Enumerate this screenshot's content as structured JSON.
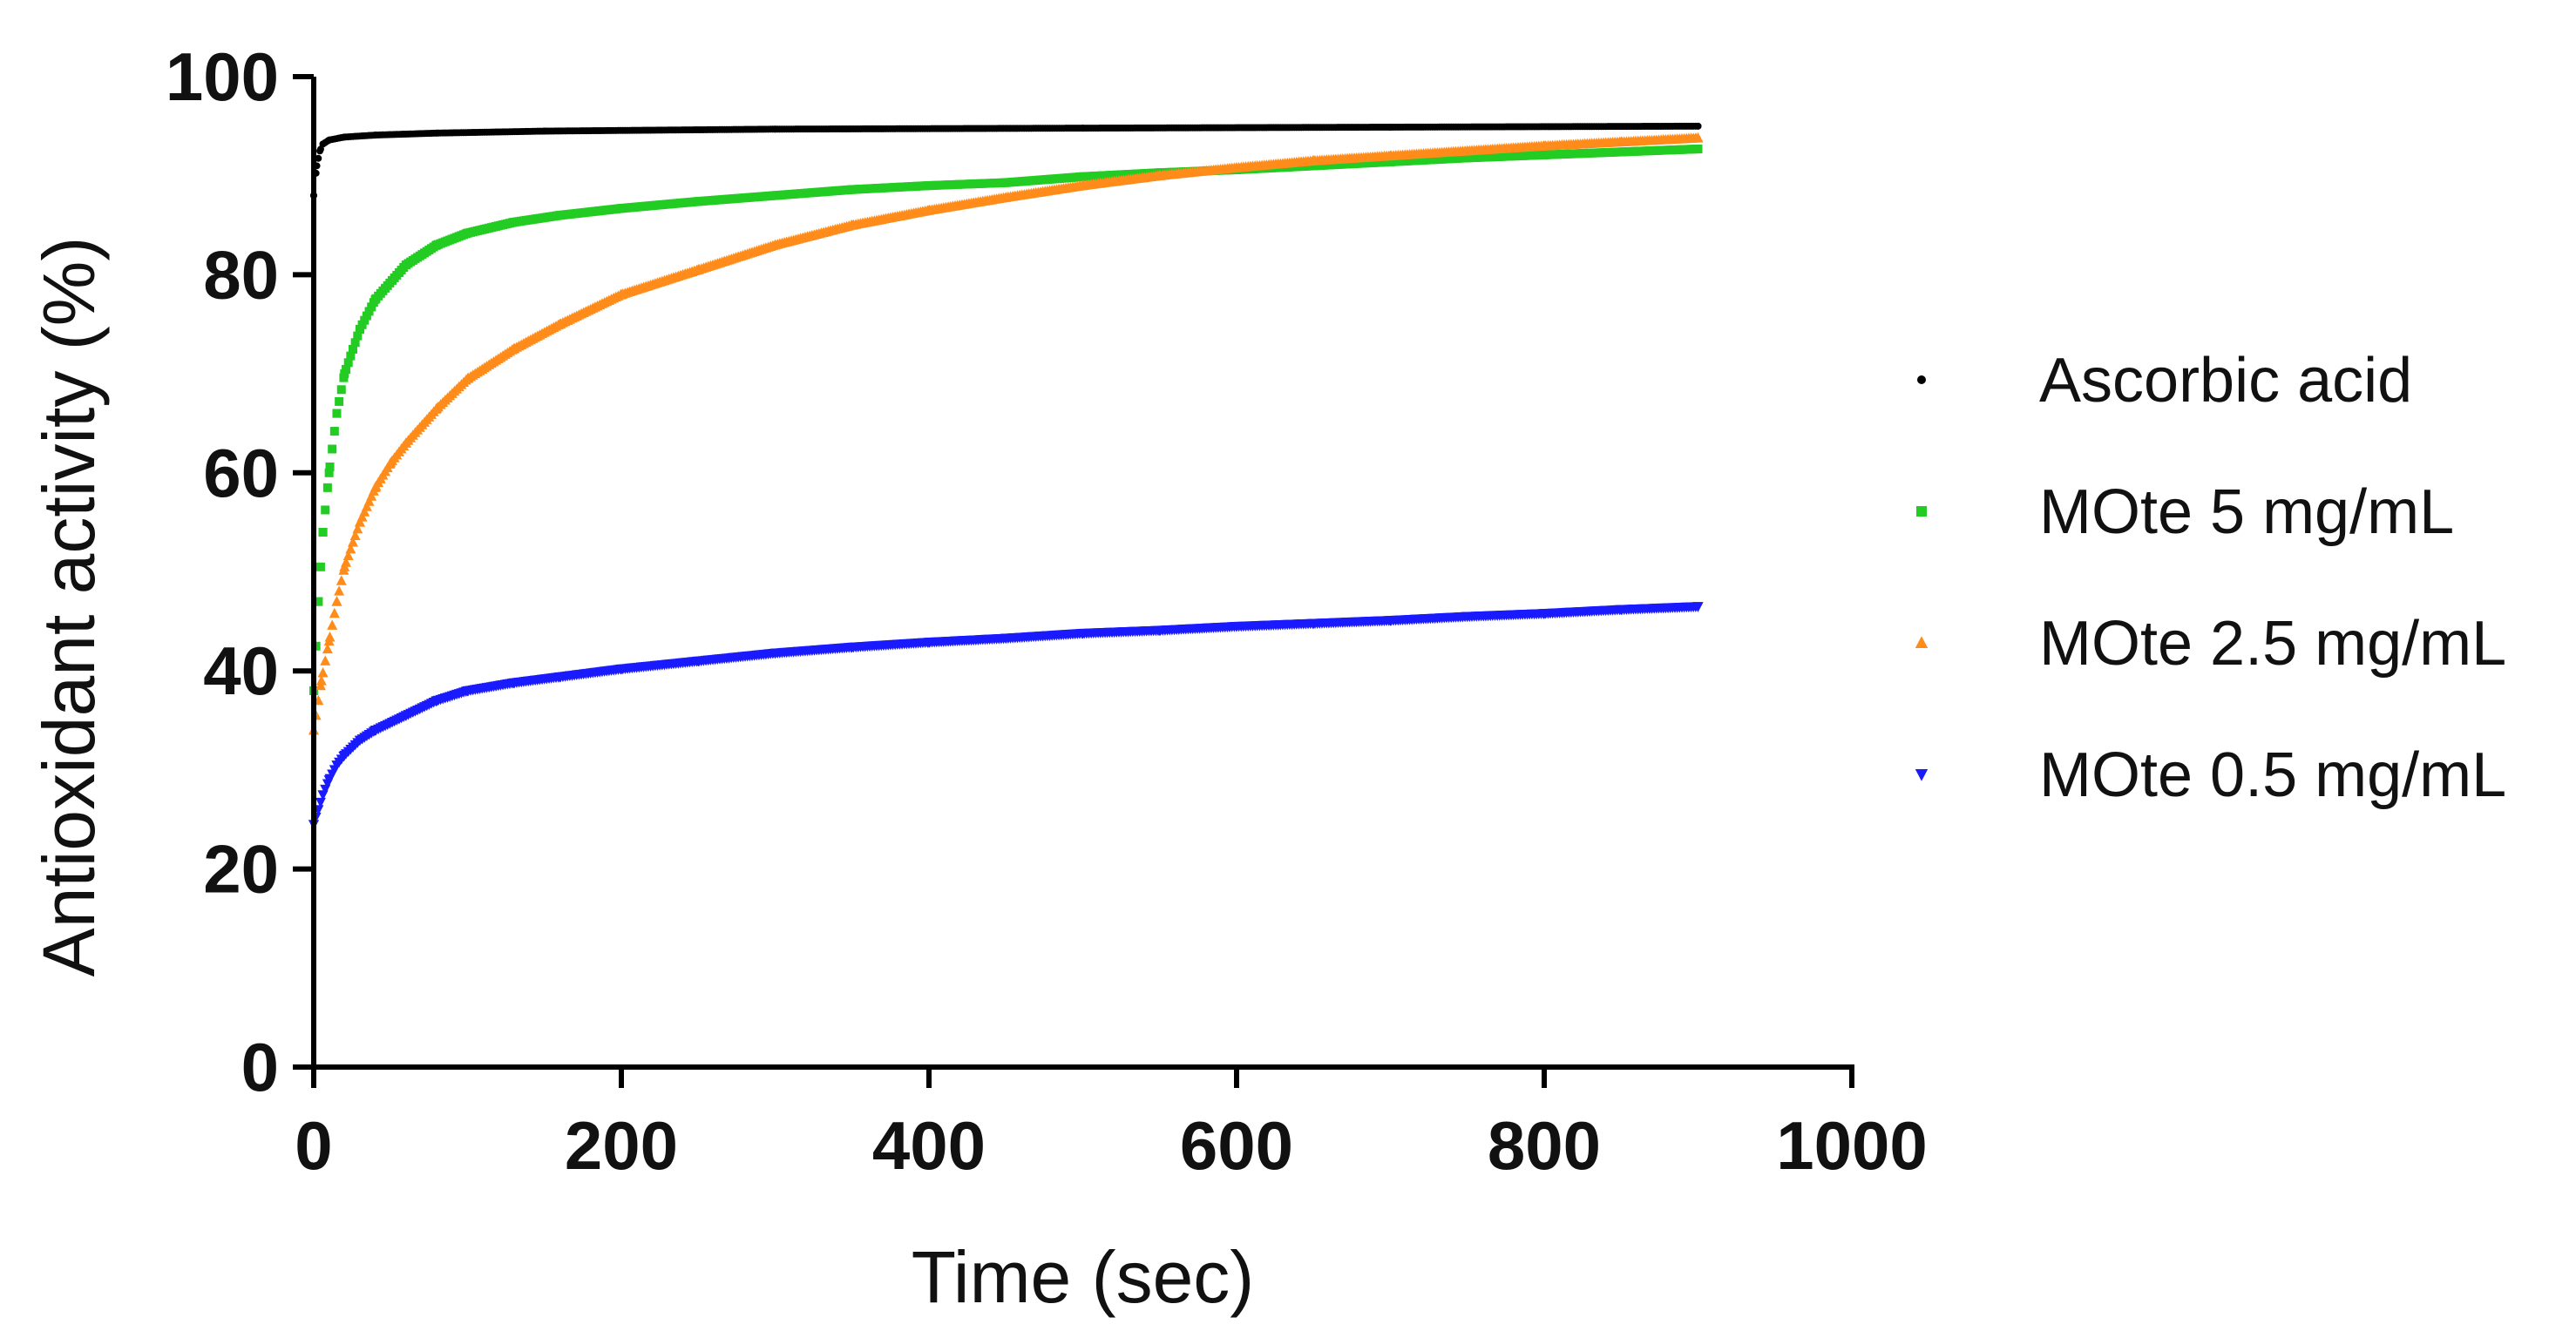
{
  "chart_data": {
    "type": "scatter",
    "title": "",
    "xlabel": "Time (sec)",
    "ylabel": "Antioxidant activity (%)",
    "xlim": [
      0,
      1000
    ],
    "ylim": [
      0,
      100
    ],
    "xticks": [
      0,
      200,
      400,
      600,
      800,
      1000
    ],
    "yticks": [
      0,
      20,
      40,
      60,
      80,
      100
    ],
    "grid": false,
    "legend_position": "right",
    "series": [
      {
        "name": "Ascorbic acid",
        "color": "#000000",
        "marker": "circle",
        "points": [
          [
            0,
            88
          ],
          [
            2,
            91
          ],
          [
            4,
            92.5
          ],
          [
            6,
            93.2
          ],
          [
            10,
            93.6
          ],
          [
            20,
            93.9
          ],
          [
            40,
            94.1
          ],
          [
            80,
            94.3
          ],
          [
            150,
            94.5
          ],
          [
            300,
            94.7
          ],
          [
            500,
            94.8
          ],
          [
            700,
            94.9
          ],
          [
            900,
            95.0
          ]
        ]
      },
      {
        "name": "MOte 5 mg/mL",
        "color": "#22cc22",
        "marker": "square",
        "points": [
          [
            0,
            38
          ],
          [
            3,
            47
          ],
          [
            6,
            54
          ],
          [
            10,
            60
          ],
          [
            15,
            66
          ],
          [
            20,
            70
          ],
          [
            30,
            74.5
          ],
          [
            40,
            77.5
          ],
          [
            60,
            81
          ],
          [
            80,
            83
          ],
          [
            100,
            84.2
          ],
          [
            130,
            85.3
          ],
          [
            160,
            86
          ],
          [
            200,
            86.7
          ],
          [
            250,
            87.4
          ],
          [
            300,
            88
          ],
          [
            350,
            88.6
          ],
          [
            400,
            89
          ],
          [
            450,
            89.3
          ],
          [
            500,
            89.9
          ],
          [
            550,
            90.3
          ],
          [
            600,
            90.6
          ],
          [
            650,
            91
          ],
          [
            700,
            91.4
          ],
          [
            750,
            91.8
          ],
          [
            800,
            92.1
          ],
          [
            850,
            92.4
          ],
          [
            900,
            92.7
          ]
        ]
      },
      {
        "name": "MOte 2.5 mg/mL",
        "color": "#ff8c1a",
        "marker": "triangle-up",
        "points": [
          [
            0,
            34
          ],
          [
            5,
            39
          ],
          [
            10,
            43
          ],
          [
            15,
            47
          ],
          [
            20,
            50.5
          ],
          [
            30,
            55
          ],
          [
            40,
            58.5
          ],
          [
            50,
            61
          ],
          [
            60,
            63
          ],
          [
            80,
            66.5
          ],
          [
            100,
            69.5
          ],
          [
            130,
            72.5
          ],
          [
            160,
            75
          ],
          [
            200,
            78
          ],
          [
            250,
            80.5
          ],
          [
            300,
            83
          ],
          [
            350,
            85
          ],
          [
            400,
            86.5
          ],
          [
            450,
            87.8
          ],
          [
            500,
            89
          ],
          [
            550,
            90
          ],
          [
            600,
            90.8
          ],
          [
            650,
            91.5
          ],
          [
            700,
            92
          ],
          [
            750,
            92.5
          ],
          [
            800,
            93
          ],
          [
            850,
            93.4
          ],
          [
            900,
            93.8
          ]
        ]
      },
      {
        "name": "MOte 0.5 mg/mL",
        "color": "#1a1aff",
        "marker": "triangle-down",
        "points": [
          [
            0,
            24.5
          ],
          [
            3,
            26
          ],
          [
            6,
            27.5
          ],
          [
            10,
            29
          ],
          [
            15,
            30.5
          ],
          [
            20,
            31.5
          ],
          [
            30,
            33
          ],
          [
            40,
            34
          ],
          [
            60,
            35.5
          ],
          [
            80,
            37
          ],
          [
            100,
            38
          ],
          [
            130,
            38.8
          ],
          [
            160,
            39.4
          ],
          [
            200,
            40.2
          ],
          [
            250,
            41
          ],
          [
            300,
            41.8
          ],
          [
            350,
            42.4
          ],
          [
            400,
            42.9
          ],
          [
            450,
            43.3
          ],
          [
            500,
            43.8
          ],
          [
            550,
            44.1
          ],
          [
            600,
            44.5
          ],
          [
            650,
            44.8
          ],
          [
            700,
            45.1
          ],
          [
            750,
            45.5
          ],
          [
            800,
            45.8
          ],
          [
            850,
            46.2
          ],
          [
            900,
            46.5
          ]
        ]
      }
    ]
  }
}
